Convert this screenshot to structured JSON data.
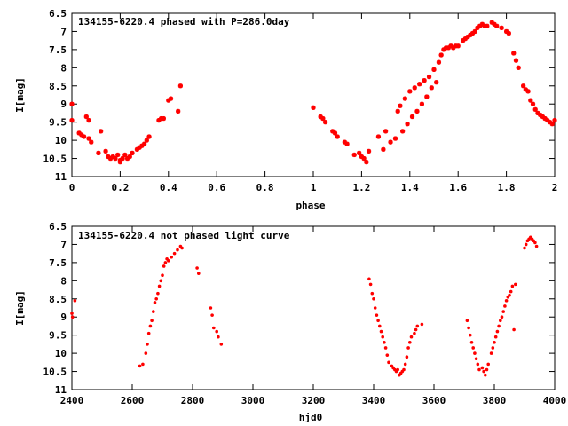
{
  "chart_data": [
    {
      "type": "scatter",
      "title": "134155-6220.4 phased with P=286.0day",
      "xlabel": "phase",
      "ylabel": "I[mag]",
      "xlim": [
        0,
        2
      ],
      "ylim": [
        11,
        6.5
      ],
      "y_inverted": true,
      "x_ticks": [
        "0",
        "0.2",
        "0.4",
        "0.6",
        "0.8",
        "1",
        "1.2",
        "1.4",
        "1.6",
        "1.8",
        "2"
      ],
      "y_ticks": [
        "6.5",
        "7",
        "7.5",
        "8",
        "8.5",
        "9",
        "9.5",
        "10",
        "10.5",
        "11"
      ],
      "marker_color": "#ff0000",
      "grid": false,
      "series": [
        {
          "x": [
            0.0,
            0.0,
            0.03,
            0.04,
            0.05,
            0.06,
            0.07,
            0.07,
            0.08,
            0.11,
            0.12,
            0.14,
            0.15,
            0.16,
            0.17,
            0.18,
            0.19,
            0.2,
            0.2,
            0.21,
            0.22,
            0.23,
            0.24,
            0.25,
            0.27,
            0.28,
            0.29,
            0.3,
            0.31,
            0.32,
            0.36,
            0.37,
            0.38,
            0.4,
            0.41,
            0.44,
            0.45,
            1.0,
            1.03,
            1.04,
            1.05,
            1.08,
            1.09,
            1.1,
            1.13,
            1.14,
            1.17,
            1.19,
            1.2,
            1.21,
            1.22,
            1.23,
            1.27,
            1.29,
            1.3,
            1.32,
            1.34,
            1.35,
            1.36,
            1.37,
            1.38,
            1.39,
            1.4,
            1.41,
            1.42,
            1.43,
            1.44,
            1.45,
            1.46,
            1.47,
            1.48,
            1.49,
            1.5,
            1.51,
            1.52,
            1.53,
            1.54,
            1.55,
            1.56,
            1.57,
            1.58,
            1.59,
            1.6,
            1.62,
            1.63,
            1.64,
            1.65,
            1.66,
            1.67,
            1.68,
            1.69,
            1.7,
            1.71,
            1.72,
            1.74,
            1.75,
            1.76,
            1.78,
            1.8,
            1.81,
            1.83,
            1.84,
            1.85,
            1.87,
            1.88,
            1.89,
            1.9,
            1.91,
            1.92,
            1.93,
            1.94,
            1.95,
            1.96,
            1.97,
            1.98,
            1.99,
            2.0
          ],
          "y": [
            9.0,
            9.45,
            9.8,
            9.85,
            9.9,
            9.35,
            9.45,
            9.95,
            10.05,
            10.35,
            9.75,
            10.3,
            10.45,
            10.5,
            10.45,
            10.5,
            10.4,
            10.55,
            10.6,
            10.5,
            10.4,
            10.5,
            10.45,
            10.35,
            10.25,
            10.2,
            10.15,
            10.1,
            10.0,
            9.9,
            9.45,
            9.4,
            9.4,
            8.9,
            8.85,
            9.2,
            8.5,
            9.1,
            9.35,
            9.4,
            9.5,
            9.75,
            9.8,
            9.9,
            10.05,
            10.1,
            10.4,
            10.35,
            10.45,
            10.5,
            10.6,
            10.3,
            9.9,
            10.25,
            9.75,
            10.05,
            9.95,
            9.2,
            9.05,
            9.75,
            8.85,
            9.55,
            8.65,
            9.35,
            8.55,
            9.2,
            8.45,
            9.0,
            8.35,
            8.8,
            8.25,
            8.55,
            8.05,
            8.4,
            7.85,
            7.65,
            7.5,
            7.45,
            7.45,
            7.4,
            7.45,
            7.4,
            7.4,
            7.25,
            7.2,
            7.15,
            7.1,
            7.05,
            7.0,
            6.9,
            6.85,
            6.8,
            6.85,
            6.85,
            6.75,
            6.8,
            6.85,
            6.9,
            7.0,
            7.05,
            7.6,
            7.8,
            8.0,
            8.5,
            8.6,
            8.65,
            8.9,
            9.0,
            9.15,
            9.25,
            9.3,
            9.35,
            9.4,
            9.45,
            9.5,
            9.55,
            9.45
          ]
        }
      ]
    },
    {
      "type": "scatter",
      "title": "134155-6220.4 not phased light curve",
      "xlabel": "hjd0",
      "ylabel": "I[mag]",
      "xlim": [
        2400,
        4000
      ],
      "ylim": [
        11,
        6.5
      ],
      "y_inverted": true,
      "x_ticks": [
        "2400",
        "2600",
        "2800",
        "3000",
        "3200",
        "3400",
        "3600",
        "3800",
        "4000"
      ],
      "y_ticks": [
        "6.5",
        "7",
        "7.5",
        "8",
        "8.5",
        "9",
        "9.5",
        "10",
        "10.5",
        "11"
      ],
      "marker_color": "#ff0000",
      "grid": false,
      "series": [
        {
          "x": [
            2400,
            2402,
            2410,
            2625,
            2635,
            2645,
            2650,
            2655,
            2660,
            2665,
            2670,
            2675,
            2680,
            2685,
            2690,
            2695,
            2700,
            2705,
            2710,
            2715,
            2720,
            2730,
            2740,
            2750,
            2760,
            2765,
            2815,
            2820,
            2860,
            2865,
            2870,
            2880,
            2885,
            2895,
            3385,
            3390,
            3395,
            3400,
            3405,
            3410,
            3415,
            3420,
            3425,
            3430,
            3435,
            3440,
            3445,
            3450,
            3460,
            3465,
            3470,
            3475,
            3480,
            3485,
            3490,
            3495,
            3500,
            3505,
            3510,
            3515,
            3520,
            3525,
            3535,
            3540,
            3545,
            3560,
            3710,
            3715,
            3720,
            3725,
            3730,
            3735,
            3740,
            3745,
            3750,
            3760,
            3765,
            3770,
            3775,
            3780,
            3790,
            3795,
            3800,
            3805,
            3810,
            3815,
            3820,
            3825,
            3830,
            3835,
            3840,
            3845,
            3850,
            3855,
            3860,
            3865,
            3870,
            3900,
            3905,
            3910,
            3915,
            3920,
            3925,
            3930,
            3935,
            3940
          ],
          "y": [
            8.9,
            9.0,
            8.55,
            10.35,
            10.3,
            10.0,
            9.75,
            9.45,
            9.25,
            9.1,
            8.85,
            8.6,
            8.5,
            8.35,
            8.15,
            8.0,
            7.85,
            7.6,
            7.5,
            7.4,
            7.45,
            7.35,
            7.25,
            7.15,
            7.05,
            7.1,
            7.65,
            7.8,
            8.75,
            8.95,
            9.3,
            9.4,
            9.55,
            9.75,
            7.95,
            8.1,
            8.35,
            8.5,
            8.75,
            8.95,
            9.1,
            9.25,
            9.4,
            9.55,
            9.7,
            9.85,
            10.05,
            10.25,
            10.35,
            10.4,
            10.45,
            10.5,
            10.45,
            10.6,
            10.55,
            10.5,
            10.45,
            10.3,
            10.1,
            9.85,
            9.7,
            9.55,
            9.45,
            9.35,
            9.25,
            9.2,
            9.1,
            9.3,
            9.5,
            9.7,
            9.85,
            10.0,
            10.15,
            10.3,
            10.45,
            10.4,
            10.5,
            10.6,
            10.45,
            10.3,
            10.0,
            9.85,
            9.7,
            9.55,
            9.4,
            9.25,
            9.1,
            9.0,
            8.85,
            8.7,
            8.55,
            8.45,
            8.4,
            8.3,
            8.15,
            9.35,
            8.1,
            7.1,
            7.0,
            6.9,
            6.85,
            6.8,
            6.85,
            6.9,
            6.95,
            7.05
          ]
        }
      ]
    }
  ]
}
